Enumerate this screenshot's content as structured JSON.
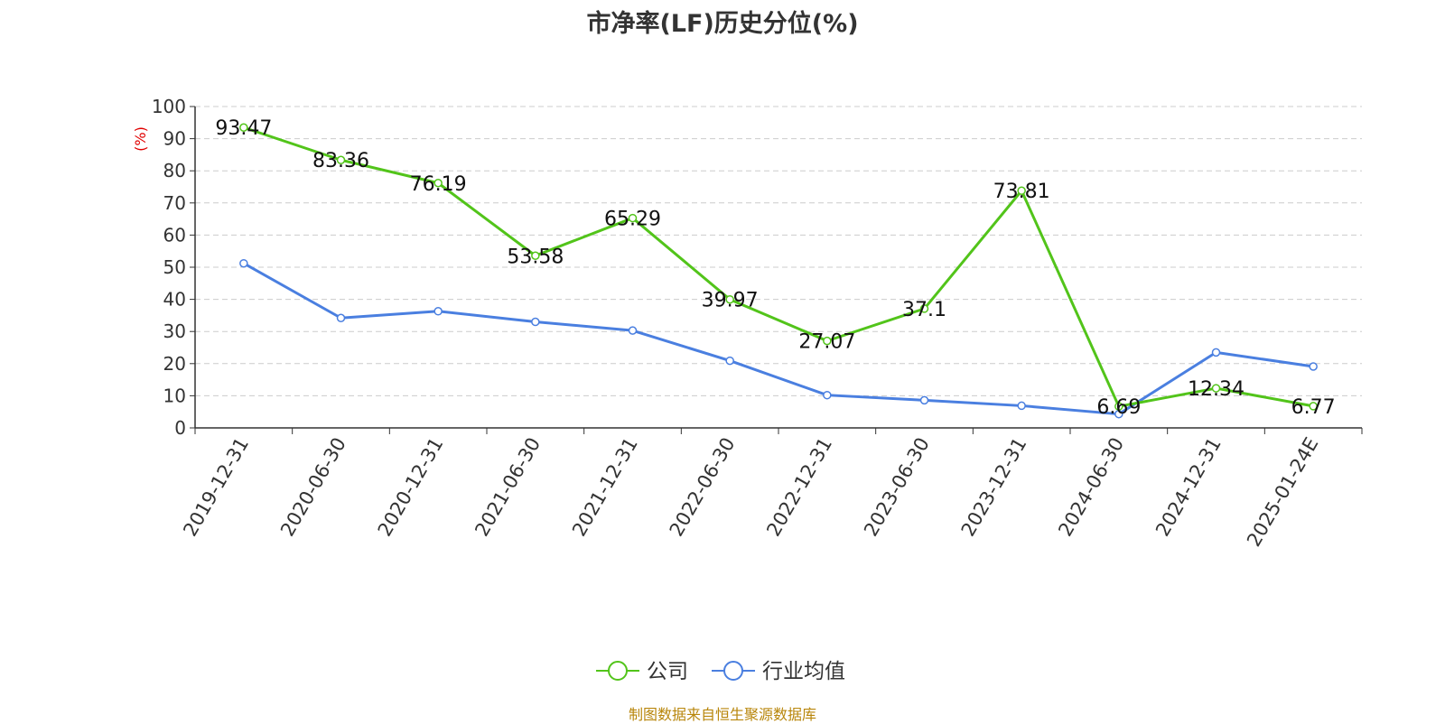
{
  "title": "市净率(LF)历史分位(%)",
  "source": "制图数据来自恒生聚源数据库",
  "chart_data": {
    "type": "line",
    "title": "市净率(LF)历史分位(%)",
    "ylabel": "(%)",
    "ylim": [
      0,
      100
    ],
    "yticks": [
      0,
      10,
      20,
      30,
      40,
      50,
      60,
      70,
      80,
      90,
      100
    ],
    "grid": true,
    "legend_position": "bottom-center",
    "categories": [
      "2019-12-31",
      "2020-06-30",
      "2020-12-31",
      "2021-06-30",
      "2021-12-31",
      "2022-06-30",
      "2022-12-31",
      "2023-06-30",
      "2023-12-31",
      "2024-06-30",
      "2024-12-31",
      "2025-01-24E"
    ],
    "series": [
      {
        "name": "公司",
        "color": "#52c41a",
        "show_labels": true,
        "labels": [
          "93.47",
          "83.36",
          "76.19",
          "53.58",
          "65.29",
          "39.97",
          "27.07",
          "37.1",
          "73.81",
          "6.69",
          "12.34",
          "6.77"
        ],
        "values": [
          93.47,
          83.36,
          76.19,
          53.58,
          65.29,
          39.97,
          27.07,
          37.1,
          73.81,
          6.69,
          12.34,
          6.77
        ]
      },
      {
        "name": "行业均值",
        "color": "#4a7fe0",
        "show_labels": false,
        "values": [
          51.2,
          34.2,
          36.3,
          33.0,
          30.3,
          20.9,
          10.2,
          8.6,
          6.9,
          4.3,
          23.5,
          19.1
        ]
      }
    ]
  }
}
